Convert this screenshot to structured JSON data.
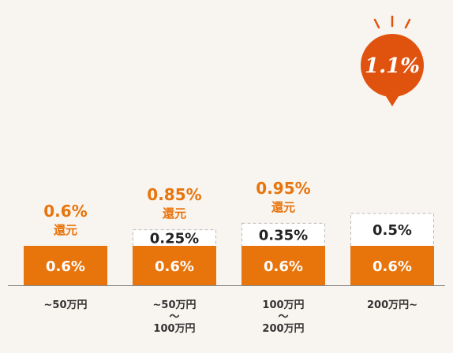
{
  "chart_data": {
    "type": "bar",
    "stacked": true,
    "categories": [
      [
        "~50万円"
      ],
      [
        "~50万円",
        "〜",
        "100万円"
      ],
      [
        "100万円",
        "〜",
        "200万円"
      ],
      [
        "200万円~"
      ]
    ],
    "series": [
      {
        "values": [
          0.6,
          0.6,
          0.6,
          0.6
        ],
        "labels": [
          "0.6%",
          "0.6%",
          "0.6%",
          "0.6%"
        ],
        "color": "#e8740c"
      },
      {
        "values": [
          0,
          0.25,
          0.35,
          0.5
        ],
        "labels": [
          "",
          "0.25%",
          "0.35%",
          "0.5%"
        ],
        "color": "#ffffff"
      }
    ],
    "totals": [
      "0.6%",
      "0.85%",
      "0.95%",
      "1.1%"
    ],
    "totals_suffix": "還元",
    "highlight_total": "1.1%",
    "ylim": [
      0,
      1.1
    ],
    "grid": false,
    "colors": {
      "accent": "#e8740c",
      "bubble": "#e0530f",
      "dashed_border": "#bbbbbb",
      "baseline": "#888888"
    }
  }
}
